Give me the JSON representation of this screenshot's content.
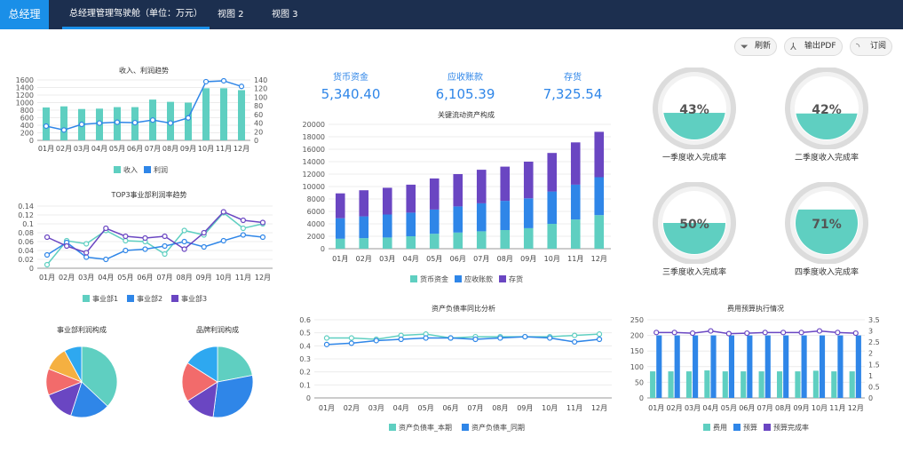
{
  "topbar": {
    "brand": "总经理",
    "tabs": [
      {
        "label": "总经理管理驾驶舱（单位：万元）",
        "active": true
      },
      {
        "label": "视图 2",
        "active": false
      },
      {
        "label": "视图 3",
        "active": false
      }
    ]
  },
  "toolbar": {
    "refresh_label": "刷新",
    "export_label": "输出PDF",
    "subscribe_label": "订阅",
    "refresh_icon": "funnel-icon",
    "export_icon": "pdf-icon",
    "subscribe_icon": "rss-icon"
  },
  "colors": {
    "teal": "#5fcfc1",
    "blue": "#2f86e8",
    "purple": "#6a46c2",
    "lightblue": "#2ea8f0",
    "red": "#f26b6b",
    "orange": "#f5b041",
    "nav": "#1c2f4f",
    "accent": "#1a8fe8"
  },
  "kpis": [
    {
      "label": "货币资金",
      "value": "5,340.40"
    },
    {
      "label": "应收账款",
      "value": "6,105.39"
    },
    {
      "label": "存货",
      "value": "7,325.54"
    }
  ],
  "gauges": [
    {
      "percent": 43,
      "label": "43%",
      "caption": "一季度收入完成率"
    },
    {
      "percent": 42,
      "label": "42%",
      "caption": "二季度收入完成率"
    },
    {
      "percent": 50,
      "label": "50%",
      "caption": "三季度收入完成率"
    },
    {
      "percent": 71,
      "label": "71%",
      "caption": "四季度收入完成率"
    }
  ],
  "chart_data": [
    {
      "id": "revenue",
      "type": "bar+line",
      "title": "收入、利润趋势",
      "categories": [
        "01月",
        "02月",
        "03月",
        "04月",
        "05月",
        "06月",
        "07月",
        "08月",
        "09月",
        "10月",
        "11月",
        "12月"
      ],
      "series": [
        {
          "name": "收入",
          "type": "bar",
          "axis": "left",
          "values": [
            870,
            900,
            830,
            840,
            880,
            880,
            1080,
            1020,
            1000,
            1380,
            1380,
            1330
          ]
        },
        {
          "name": "利润",
          "type": "line",
          "axis": "right",
          "values": [
            33,
            24,
            37,
            40,
            42,
            41,
            47,
            40,
            52,
            136,
            138,
            125
          ]
        }
      ],
      "y_left": {
        "min": 0,
        "max": 1600,
        "ticks": [
          0,
          200,
          400,
          600,
          800,
          1000,
          1200,
          1400,
          1600
        ]
      },
      "y_right": {
        "min": 0,
        "max": 140,
        "ticks": [
          0,
          20,
          40,
          60,
          80,
          100,
          120,
          140
        ]
      },
      "legend": "bottom"
    },
    {
      "id": "top3",
      "type": "line",
      "title": "TOP3事业部利润率趋势",
      "categories": [
        "01月",
        "02月",
        "03月",
        "04月",
        "05月",
        "06月",
        "07月",
        "08月",
        "09月",
        "10月",
        "11月",
        "12月"
      ],
      "series": [
        {
          "name": "事业部1",
          "values": [
            0.008,
            0.062,
            0.055,
            0.085,
            0.062,
            0.06,
            0.032,
            0.085,
            0.075,
            0.125,
            0.09,
            0.1
          ]
        },
        {
          "name": "事业部2",
          "values": [
            0.03,
            0.058,
            0.025,
            0.02,
            0.04,
            0.043,
            0.05,
            0.06,
            0.048,
            0.062,
            0.075,
            0.07
          ]
        },
        {
          "name": "事业部3",
          "values": [
            0.07,
            0.05,
            0.035,
            0.09,
            0.072,
            0.068,
            0.072,
            0.043,
            0.08,
            0.127,
            0.108,
            0.103
          ]
        }
      ],
      "y": {
        "min": 0,
        "max": 0.14,
        "ticks": [
          0,
          0.02,
          0.04,
          0.06,
          0.08,
          0.1,
          0.12,
          0.14
        ]
      },
      "legend": "bottom"
    },
    {
      "id": "pie1",
      "type": "pie",
      "title": "事业部利润构成",
      "slices": [
        {
          "value": 37
        },
        {
          "value": 18
        },
        {
          "value": 14
        },
        {
          "value": 12
        },
        {
          "value": 11
        },
        {
          "value": 8
        }
      ]
    },
    {
      "id": "pie2",
      "type": "pie",
      "title": "品牌利润构成",
      "slices": [
        {
          "value": 22
        },
        {
          "value": 30
        },
        {
          "value": 14
        },
        {
          "value": 18
        },
        {
          "value": 16
        }
      ]
    },
    {
      "id": "assets",
      "type": "stacked-bar",
      "title": "关键流动资产构成",
      "categories": [
        "01月",
        "02月",
        "03月",
        "04月",
        "05月",
        "06月",
        "07月",
        "08月",
        "09月",
        "10月",
        "11月",
        "12月"
      ],
      "series": [
        {
          "name": "货币资金",
          "values": [
            1600,
            1700,
            1800,
            2000,
            2400,
            2600,
            2800,
            3000,
            3300,
            4000,
            4700,
            5400
          ]
        },
        {
          "name": "应收账款",
          "values": [
            3300,
            3500,
            3700,
            3800,
            3900,
            4200,
            4500,
            4700,
            4800,
            5200,
            5600,
            6100
          ]
        },
        {
          "name": "存货",
          "values": [
            4000,
            4200,
            4300,
            4500,
            5000,
            5200,
            5400,
            5500,
            5900,
            6200,
            6800,
            7300
          ]
        }
      ],
      "y": {
        "min": 0,
        "max": 20000,
        "ticks": [
          0,
          2000,
          4000,
          6000,
          8000,
          10000,
          12000,
          14000,
          16000,
          18000,
          20000
        ]
      },
      "legend": "bottom"
    },
    {
      "id": "debt",
      "type": "line",
      "title": "资产负债率同比分析",
      "categories": [
        "01月",
        "02月",
        "03月",
        "04月",
        "05月",
        "06月",
        "07月",
        "08月",
        "09月",
        "10月",
        "11月",
        "12月"
      ],
      "series": [
        {
          "name": "资产负债率_本期",
          "values": [
            0.46,
            0.46,
            0.45,
            0.48,
            0.49,
            0.46,
            0.47,
            0.47,
            0.47,
            0.47,
            0.48,
            0.49
          ]
        },
        {
          "name": "资产负债率_同期",
          "values": [
            0.41,
            0.42,
            0.44,
            0.45,
            0.46,
            0.46,
            0.45,
            0.46,
            0.47,
            0.46,
            0.43,
            0.45
          ]
        }
      ],
      "y": {
        "min": 0,
        "max": 0.6,
        "ticks": [
          0,
          0.1,
          0.2,
          0.3,
          0.4,
          0.5,
          0.6
        ]
      },
      "legend": "bottom"
    },
    {
      "id": "budget",
      "type": "bar+line",
      "title": "费用预算执行情况",
      "categories": [
        "01月",
        "02月",
        "03月",
        "04月",
        "05月",
        "06月",
        "07月",
        "08月",
        "09月",
        "10月",
        "11月",
        "12月"
      ],
      "series": [
        {
          "name": "费用",
          "type": "bar",
          "axis": "left",
          "values": [
            85,
            85,
            85,
            88,
            85,
            85,
            85,
            85,
            85,
            87,
            85,
            85
          ]
        },
        {
          "name": "预算",
          "type": "bar",
          "axis": "left",
          "values": [
            200,
            200,
            200,
            200,
            200,
            200,
            200,
            200,
            200,
            200,
            200,
            200
          ]
        },
        {
          "name": "预算完成率",
          "type": "line",
          "axis": "right",
          "values": [
            2.93,
            2.93,
            2.9,
            3.0,
            2.88,
            2.9,
            2.93,
            2.93,
            2.93,
            3.0,
            2.93,
            2.9
          ]
        }
      ],
      "y_left": {
        "min": 0,
        "max": 250,
        "ticks": [
          0,
          50,
          100,
          150,
          200,
          250
        ]
      },
      "y_right": {
        "min": 0,
        "max": 3.5,
        "ticks": [
          0,
          0.5,
          1,
          1.5,
          2,
          2.5,
          3,
          3.5
        ]
      },
      "legend": "bottom"
    }
  ]
}
